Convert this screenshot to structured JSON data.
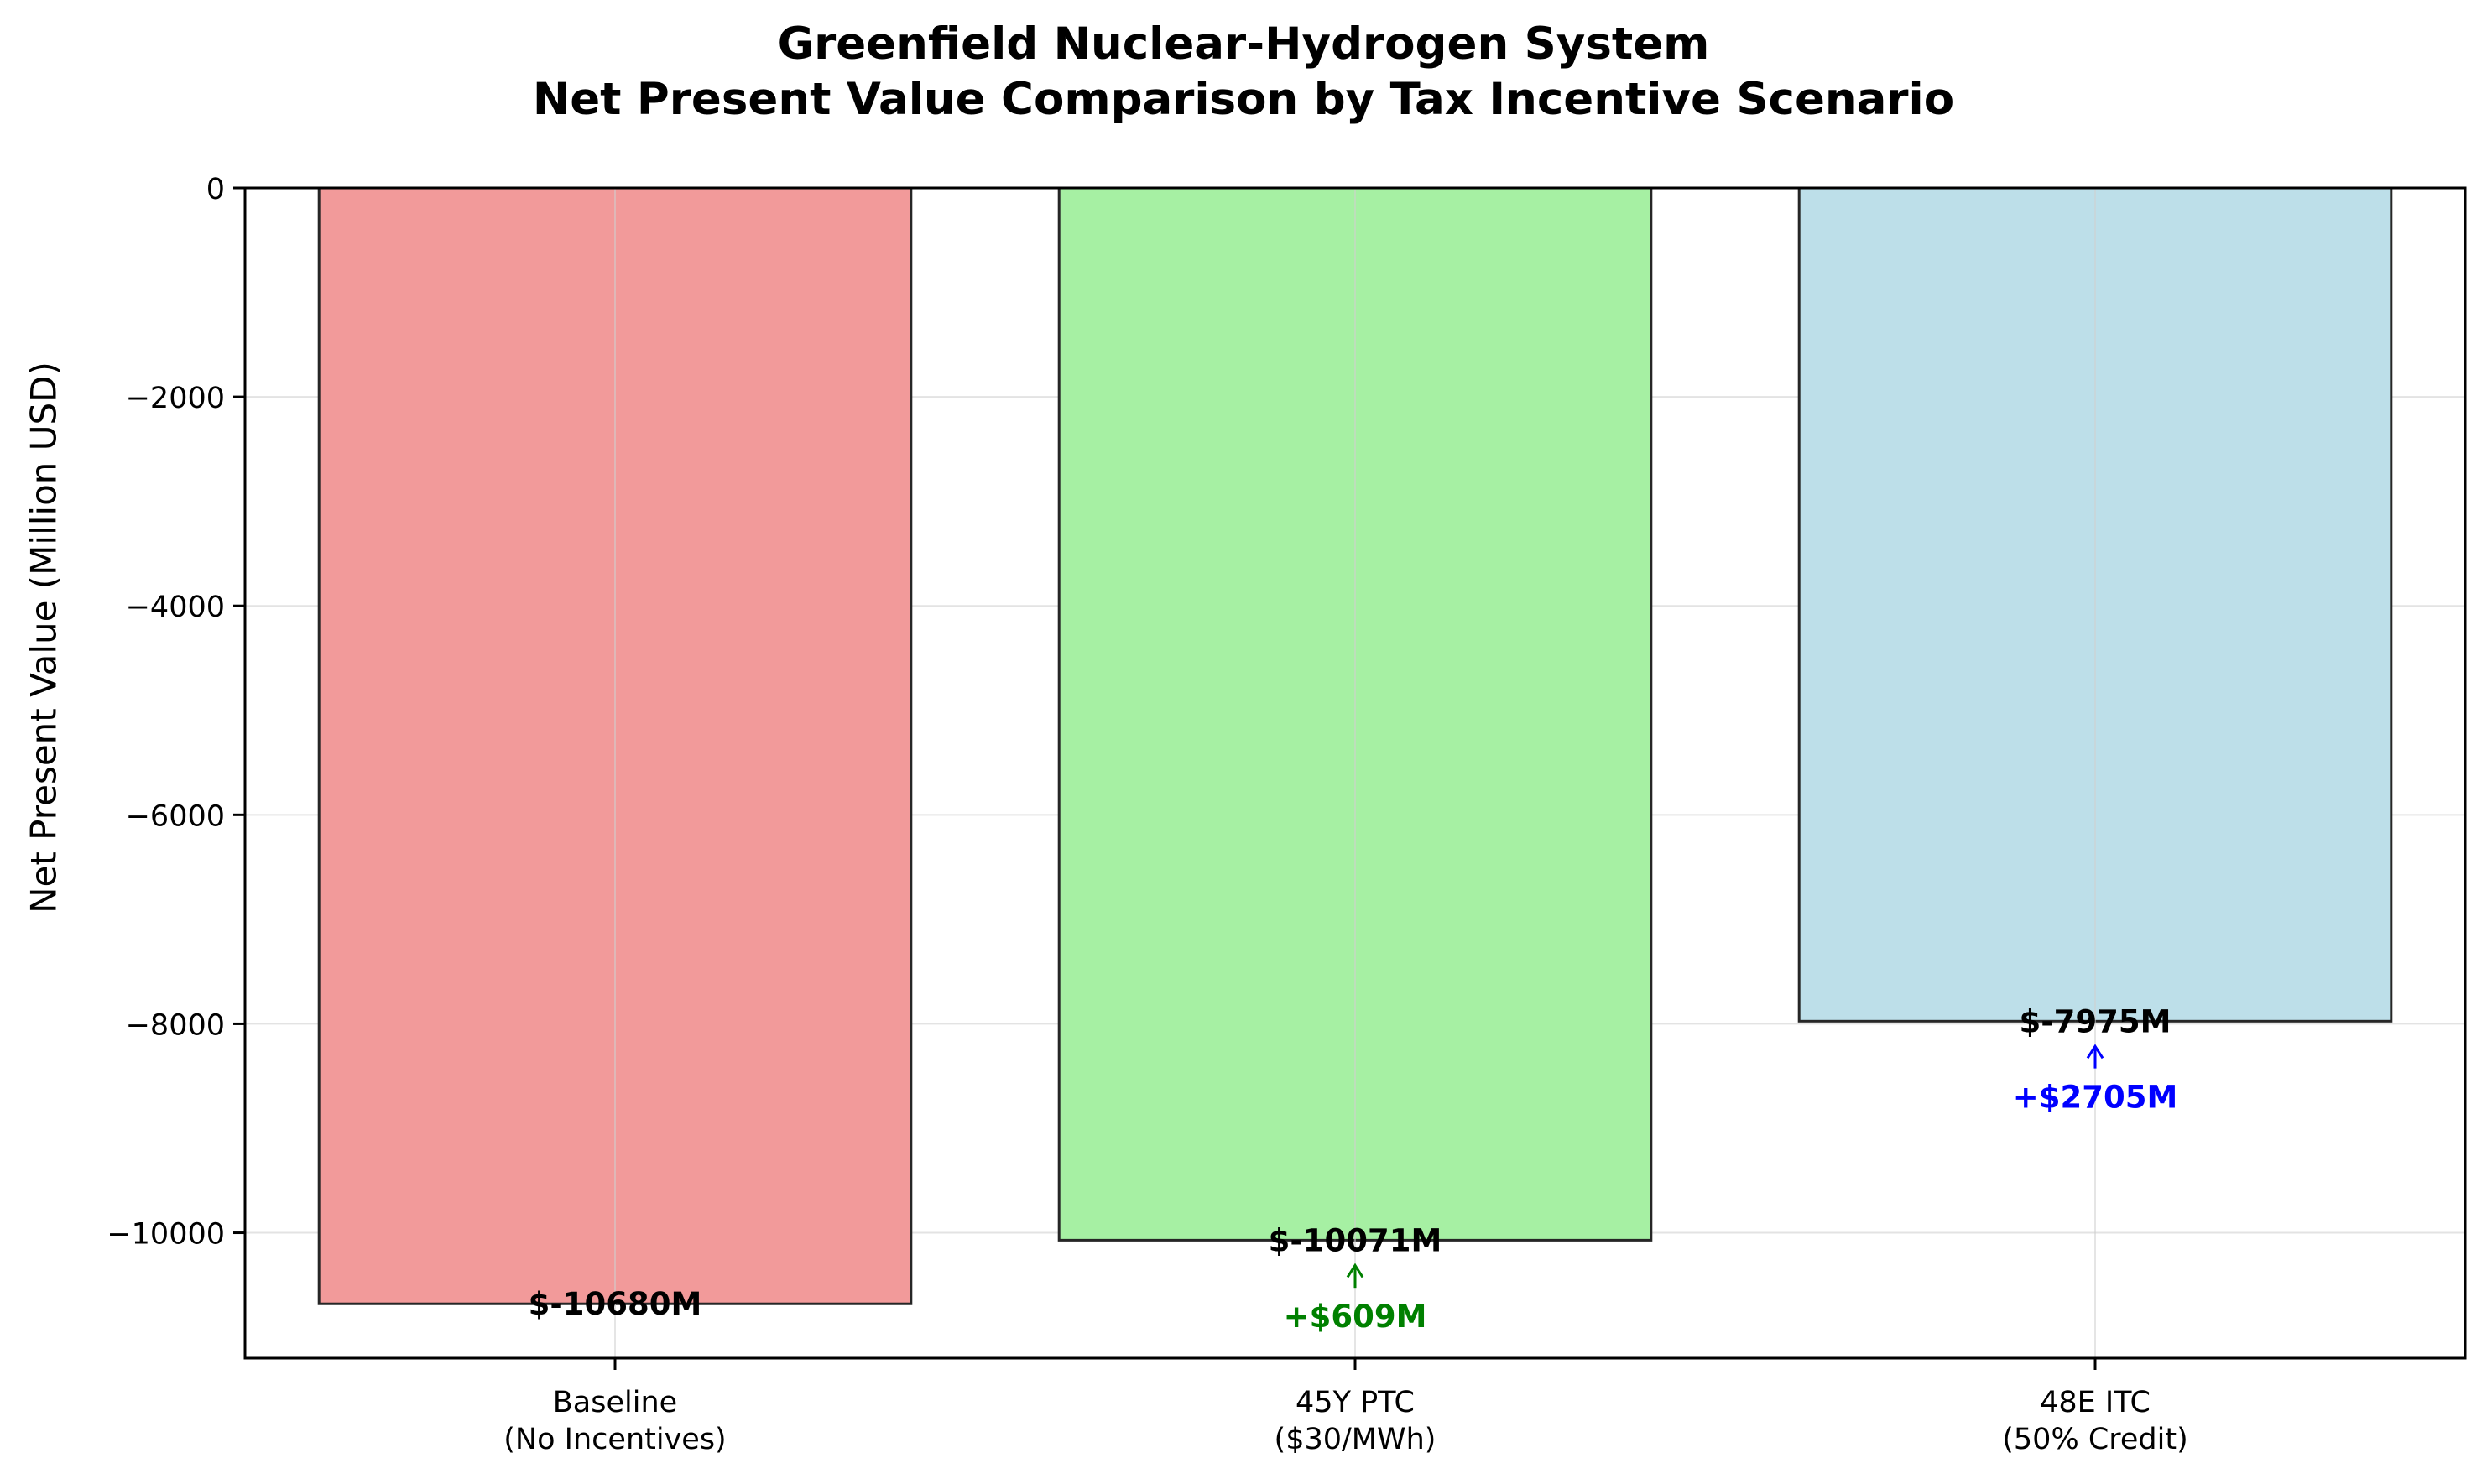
{
  "chart_data": {
    "type": "bar",
    "title_line1": "Greenfield Nuclear-Hydrogen System",
    "title_line2": "Net Present Value Comparison by Tax Incentive Scenario",
    "ylabel": "Net Present Value (Million USD)",
    "xlabel": "",
    "ylim": [
      -11200,
      0
    ],
    "yticks": [
      0,
      -2000,
      -4000,
      -6000,
      -8000,
      -10000
    ],
    "ytick_labels": [
      "0",
      "−2000",
      "−4000",
      "−6000",
      "−8000",
      "−10000"
    ],
    "grid": true,
    "categories": [
      {
        "line1": "Baseline",
        "line2": "(No Incentives)"
      },
      {
        "line1": "45Y PTC",
        "line2": "($30/MWh)"
      },
      {
        "line1": "48E ITC",
        "line2": "(50% Credit)"
      }
    ],
    "values": [
      -10680,
      -10071,
      -7975
    ],
    "value_labels": [
      "$-10680M",
      "$-10071M",
      "$-7975M"
    ],
    "colors": [
      "#f29a9a",
      "#a6f0a3",
      "#bddfe9"
    ],
    "annotations": [
      null,
      {
        "text": "+$609M",
        "color": "#008000",
        "text_at": -10800
      },
      {
        "text": "+$2705M",
        "color": "#0000ff",
        "text_at": -8700
      }
    ]
  }
}
